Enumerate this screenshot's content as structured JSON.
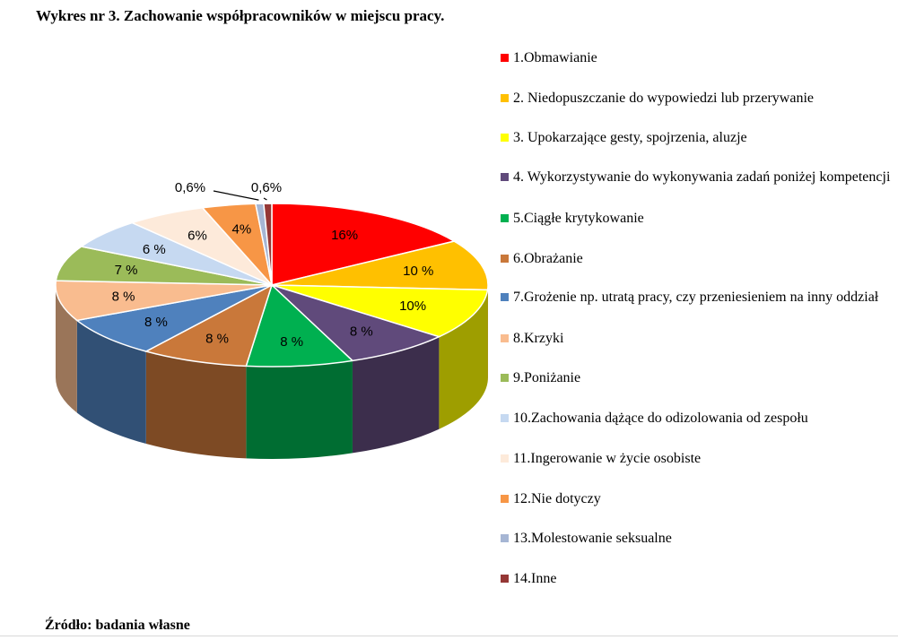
{
  "title": "Wykres nr 3. Zachowanie współpracowników w miejscu pracy.",
  "source": "Źródło: badania własne",
  "chart_data": {
    "type": "pie",
    "title": "Wykres nr 3. Zachowanie współpracowników w miejscu pracy.",
    "legend_position": "right",
    "three_d": true,
    "slices": [
      {
        "name": "1.Obmawianie",
        "value": 16,
        "label": "16%",
        "color": "#ff0000"
      },
      {
        "name": "2. Niedopuszczanie do wypowiedzi lub przerywanie",
        "value": 10,
        "label": "10 %",
        "color": "#ffc000"
      },
      {
        "name": "3. Upokarzające gesty, spojrzenia, aluzje",
        "value": 10,
        "label": "10%",
        "color": "#ffff00"
      },
      {
        "name": "4. Wykorzystywanie do wykonywania zadań poniżej kompetencji",
        "value": 8,
        "label": "8 %",
        "color": "#604a7b"
      },
      {
        "name": "5.Ciągłe krytykowanie",
        "value": 8,
        "label": "8 %",
        "color": "#00b050"
      },
      {
        "name": "6.Obrażanie",
        "value": 8,
        "label": "8 %",
        "color": "#c9783a"
      },
      {
        "name": "7.Grożenie np. utratą pracy, czy przeniesieniem na inny oddział",
        "value": 8,
        "label": "8 %",
        "color": "#4f81bd"
      },
      {
        "name": "8.Krzyki",
        "value": 8,
        "label": "8 %",
        "color": "#f9bc8f"
      },
      {
        "name": "9.Poniżanie",
        "value": 7,
        "label": "7 %",
        "color": "#9bbb59"
      },
      {
        "name": "10.Zachowania dążące do odizolowania od zespołu",
        "value": 6,
        "label": "6 %",
        "color": "#c6d9f1"
      },
      {
        "name": "11.Ingerowanie w życie osobiste",
        "value": 6,
        "label": "6%",
        "color": "#fdeada"
      },
      {
        "name": "12.Nie dotyczy",
        "value": 4,
        "label": "4%",
        "color": "#f79646"
      },
      {
        "name": "13.Molestowanie seksualne",
        "value": 0.6,
        "label": "0,6%",
        "color": "#a6b6d4"
      },
      {
        "name": "14.Inne",
        "value": 0.6,
        "label": "0,6%",
        "color": "#953735"
      }
    ]
  }
}
